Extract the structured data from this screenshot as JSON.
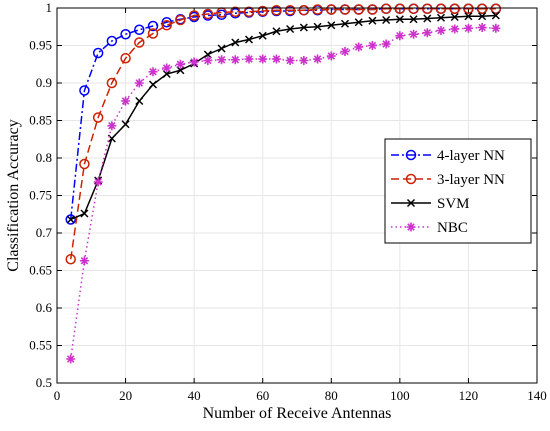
{
  "chart_data": {
    "type": "line",
    "title": "",
    "xlabel": "Number of Receive Antennas",
    "ylabel": "Classification Accuracy",
    "xlim": [
      0,
      140
    ],
    "ylim": [
      0.5,
      1
    ],
    "xticks": [
      0,
      20,
      40,
      60,
      80,
      100,
      120,
      140
    ],
    "yticks": [
      0.5,
      0.55,
      0.6,
      0.65,
      0.7,
      0.75,
      0.8,
      0.85,
      0.9,
      0.95,
      1
    ],
    "xtick_labels": [
      "0",
      "20",
      "40",
      "60",
      "80",
      "100",
      "120",
      "140"
    ],
    "ytick_labels": [
      "0.5",
      "0.55",
      "0.6",
      "0.65",
      "0.7",
      "0.75",
      "0.8",
      "0.85",
      "0.9",
      "0.95",
      "1"
    ],
    "grid": true,
    "legend_position": "center-right",
    "x": [
      4,
      8,
      12,
      16,
      20,
      24,
      28,
      32,
      36,
      40,
      44,
      48,
      52,
      56,
      60,
      64,
      68,
      72,
      76,
      80,
      84,
      88,
      92,
      96,
      100,
      104,
      108,
      112,
      116,
      120,
      124,
      128
    ],
    "series": [
      {
        "name": "4-layer NN",
        "color": "#0000ff",
        "dash": "dashdot",
        "marker": "circle",
        "values": [
          0.718,
          0.89,
          0.94,
          0.956,
          0.965,
          0.971,
          0.976,
          0.981,
          0.985,
          0.988,
          0.99,
          0.991,
          0.993,
          0.994,
          0.995,
          0.996,
          0.996,
          0.997,
          0.997,
          0.998,
          0.998,
          0.998,
          0.998,
          0.999,
          0.999,
          0.999,
          0.999,
          0.999,
          0.999,
          0.999,
          0.999,
          0.999
        ]
      },
      {
        "name": "3-layer NN",
        "color": "#cc2200",
        "dash": "dashed",
        "marker": "circle",
        "values": [
          0.665,
          0.792,
          0.854,
          0.9,
          0.933,
          0.954,
          0.966,
          0.977,
          0.984,
          0.99,
          0.992,
          0.994,
          0.995,
          0.995,
          0.996,
          0.997,
          0.997,
          0.997,
          0.998,
          0.998,
          0.998,
          0.998,
          0.998,
          0.999,
          0.999,
          0.999,
          0.999,
          0.999,
          0.999,
          0.999,
          0.999,
          0.999
        ]
      },
      {
        "name": "SVM",
        "color": "#000000",
        "dash": "solid",
        "marker": "x",
        "values": [
          0.718,
          0.726,
          0.77,
          0.826,
          0.845,
          0.876,
          0.898,
          0.912,
          0.917,
          0.926,
          0.938,
          0.946,
          0.954,
          0.958,
          0.963,
          0.969,
          0.972,
          0.974,
          0.975,
          0.977,
          0.979,
          0.981,
          0.983,
          0.984,
          0.985,
          0.985,
          0.986,
          0.987,
          0.988,
          0.989,
          0.989,
          0.99
        ]
      },
      {
        "name": "NBC",
        "color": "#cc33cc",
        "dash": "dotted",
        "marker": "star",
        "values": [
          0.532,
          0.663,
          0.768,
          0.843,
          0.876,
          0.9,
          0.915,
          0.92,
          0.925,
          0.928,
          0.93,
          0.931,
          0.931,
          0.932,
          0.932,
          0.932,
          0.93,
          0.93,
          0.932,
          0.936,
          0.942,
          0.948,
          0.95,
          0.952,
          0.963,
          0.965,
          0.967,
          0.97,
          0.972,
          0.973,
          0.974,
          0.973
        ]
      }
    ]
  }
}
